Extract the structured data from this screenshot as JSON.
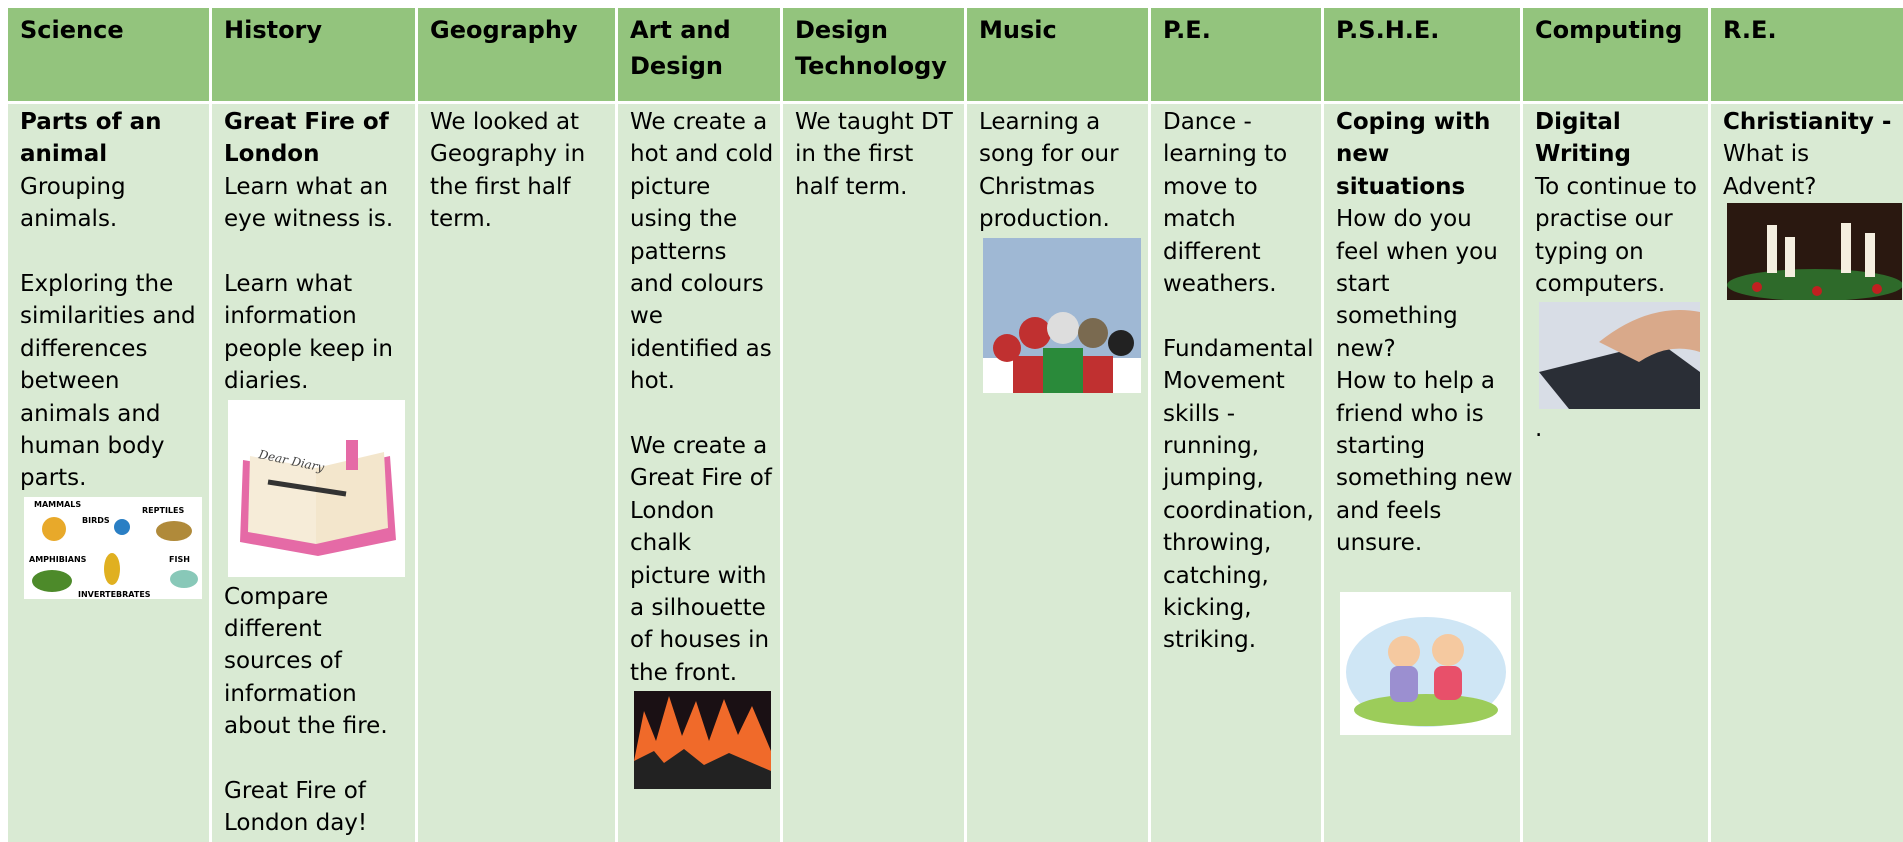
{
  "columns": [
    {
      "header": "Science",
      "title": "Parts of an animal",
      "paragraphs": [
        "Grouping animals.",
        "Exploring the similarities and differences between animals and human body parts."
      ],
      "image_labels": [
        "MAMMALS",
        "BIRDS",
        "REPTILES",
        "AMPHIBIANS",
        "FISH",
        "INVERTEBRATES"
      ]
    },
    {
      "header": "History",
      "title": "Great Fire of London",
      "paragraphs": [
        "Learn what an eye witness is.",
        "Learn what information people keep in diaries.",
        "Compare different sources of information about the fire.",
        "Great Fire of London day!"
      ],
      "image_labels": [
        "Dear Diary"
      ]
    },
    {
      "header": "Geography",
      "paragraphs": [
        "We looked at Geography in the first half term."
      ]
    },
    {
      "header": "Art and Design",
      "paragraphs": [
        "We create a hot and cold picture using the patterns and colours we identified as hot.",
        "We create a Great Fire of London chalk picture with a silhouette of houses in the front."
      ]
    },
    {
      "header": "Design Technology",
      "paragraphs": [
        "We taught DT in the first half term."
      ]
    },
    {
      "header": "Music",
      "paragraphs": [
        "Learning a song for our Christmas production."
      ]
    },
    {
      "header": "P.E.",
      "paragraphs": [
        "Dance - learning to move to match different weathers.",
        "Fundamental Movement skills - running, jumping, coordination, throwing, catching, kicking, striking."
      ]
    },
    {
      "header": "P.S.H.E.",
      "title": "Coping with new situations",
      "paragraphs": [
        "How do you feel when you start something new?",
        "How to help a friend who is starting something new and feels unsure."
      ]
    },
    {
      "header": "Computing",
      "title": "Digital Writing",
      "paragraphs": [
        "To continue to practise our typing on computers.",
        "."
      ]
    },
    {
      "header": "R.E.",
      "title": "Christianity -",
      "paragraphs": [
        "What is Advent?"
      ]
    }
  ]
}
